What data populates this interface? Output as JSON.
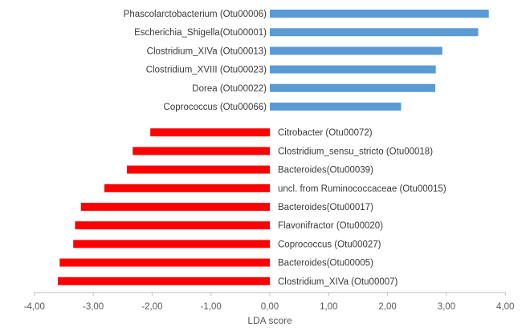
{
  "chart_data": {
    "type": "bar",
    "orientation": "horizontal",
    "title": "",
    "xlabel": "LDA score",
    "ylabel": "",
    "xlim": [
      -4,
      4
    ],
    "x_ticks": [
      -4,
      -3,
      -2,
      -1,
      0,
      1,
      2,
      3,
      4
    ],
    "x_tick_labels": [
      "-4,00",
      "-3,00",
      "-2,00",
      "-1,00",
      "0,00",
      "1,00",
      "2,00",
      "3,00",
      "4,00"
    ],
    "grid": false,
    "legend": "none",
    "colors": {
      "positive": "#5b9bd5",
      "negative": "#ff0000",
      "axis": "#bfbfbf"
    },
    "categories": [
      "Phascolarctobacterium (Otu00006)",
      "Escherichia_Shigella(Otu00001)",
      "Clostridium_XIVa (Otu00013)",
      "Clostridium_XVIII (Otu00023)",
      "Dorea (Otu00022)",
      "Coprococcus (Otu00066)",
      "Citrobacter (Otu00072)",
      "Clostridium_sensu_stricto (Otu00018)",
      "Bacteroides(Otu00039)",
      "uncl. from Ruminococcaceae (Otu00015)",
      "Bacteroides(Otu00017)",
      "Flavonifractor (Otu00020)",
      "Coprococcus (Otu00027)",
      "Bacteroides(Otu00005)",
      "Clostridium_XIVa (Otu00007)"
    ],
    "values": [
      3.72,
      3.54,
      2.93,
      2.82,
      2.81,
      2.23,
      -2.03,
      -2.33,
      -2.43,
      -2.81,
      -3.21,
      -3.31,
      -3.34,
      -3.57,
      -3.6
    ]
  }
}
